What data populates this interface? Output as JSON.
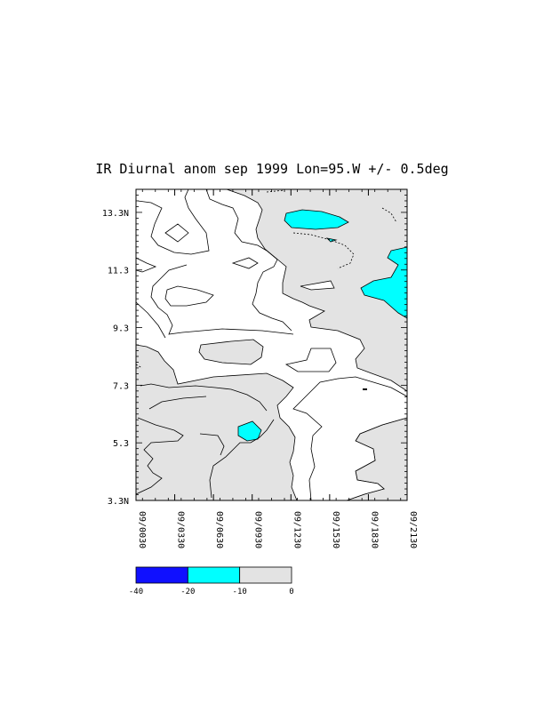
{
  "chart_data": {
    "type": "heatmap",
    "title": "IR Diurnal anom sep 1999 Lon=95.W +/- 0.5deg",
    "xlabel": "",
    "ylabel": "",
    "x_tick_labels": [
      "09/0030",
      "09/0330",
      "09/0630",
      "09/0930",
      "09/1230",
      "09/1530",
      "09/1830",
      "09/2130"
    ],
    "x_hours": [
      0.5,
      3.5,
      6.5,
      9.5,
      12.5,
      15.5,
      18.5,
      21.5
    ],
    "xlim": [
      0.5,
      21.5
    ],
    "y_tick_labels": [
      "3.3N",
      "5.3",
      "7.3",
      "9.3",
      "11.3",
      "13.3N"
    ],
    "y_values": [
      3.3,
      5.3,
      7.3,
      9.3,
      11.3,
      13.3
    ],
    "ylim": [
      3.3,
      14.1
    ],
    "grid": false,
    "colorbar": {
      "levels": [
        -40,
        -20,
        -10,
        0
      ],
      "tick_labels": [
        "-40",
        "-20",
        "-10",
        "0"
      ],
      "colors": [
        "#1010ff",
        "#00ffff",
        "#e3e3e3"
      ]
    },
    "regions": [
      {
        "range": "-10 to 0",
        "color": "#e3e3e3",
        "description": "negative anomaly, gray fill"
      },
      {
        "range": "-20 to -10",
        "color": "#00ffff",
        "description": "cyan patches near 09/1230-09/1530 at 13.3N, 09/2130 at 11-10N, 09/0930 at 5.8N"
      }
    ],
    "contour_color": "#000000"
  }
}
